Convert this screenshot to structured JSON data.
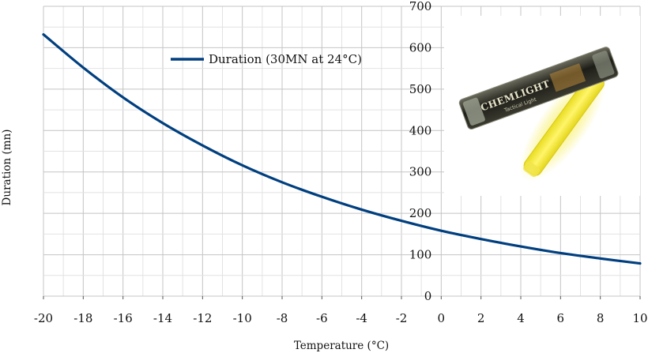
{
  "chart_data": {
    "type": "line",
    "title": "",
    "xlabel": "Temperature (°C)",
    "ylabel": "Duration (mn)",
    "xlim": [
      -20,
      10
    ],
    "ylim": [
      0,
      700
    ],
    "x_ticks": [
      -20,
      -18,
      -16,
      -14,
      -12,
      -10,
      -8,
      -6,
      -4,
      -2,
      0,
      2,
      4,
      6,
      8,
      10
    ],
    "y_ticks": [
      0,
      100,
      200,
      300,
      400,
      500,
      600,
      700
    ],
    "grid": true,
    "legend_position": "top-center",
    "series": [
      {
        "name": "Duration (30MN at 24°C)",
        "color": "#003f7f",
        "x": [
          -20,
          -18,
          -16,
          -14,
          -12,
          -10,
          -8,
          -6,
          -4,
          -2,
          0,
          2,
          4,
          6,
          8,
          10
        ],
        "y": [
          632,
          552,
          480,
          418,
          364,
          316,
          275,
          240,
          209,
          182,
          158,
          138,
          120,
          104,
          91,
          79
        ]
      }
    ]
  },
  "photo": {
    "name": "chemlight-glow-stick-photo",
    "brand_text": "CHEMLIGHT",
    "sub_text": "Tactical Light",
    "stick_color": "#f2e62a"
  }
}
